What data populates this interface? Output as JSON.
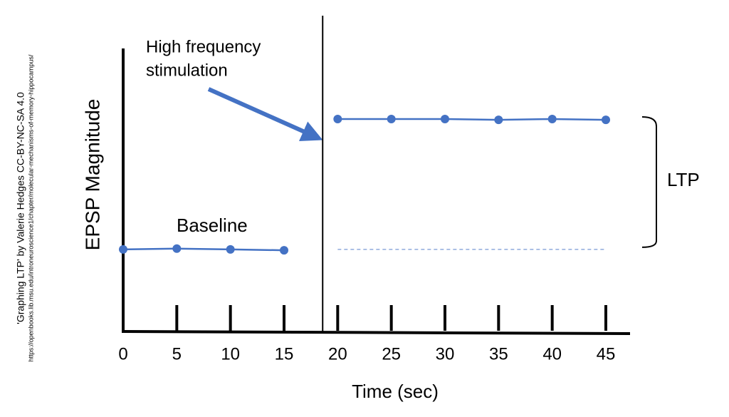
{
  "chart_data": {
    "type": "line",
    "x_label": "Time (sec)",
    "y_label": "EPSP Magnitude",
    "annotations": {
      "stimulation": [
        "High frequency",
        "stimulation"
      ],
      "baseline": "Baseline",
      "ltp": "LTP"
    },
    "credit": [
      "'Graphing LTP' by Valerie Hedges CC-BY-NC-SA 4.0",
      "https://openbooks.lib.msu.edu/introneuroscience1/chapter/molecular-mechanisms-of-memory-hippocampus/"
    ],
    "stimulation_time": 18.6,
    "series": [
      {
        "color": "#4472c4",
        "x": [
          0,
          5,
          10,
          15
        ],
        "values": [
          1.0,
          1.01,
          1.0,
          0.99
        ]
      },
      {
        "color": "#4472c4",
        "x": [
          20,
          25,
          30,
          35,
          40,
          45
        ],
        "values": [
          2.59,
          2.59,
          2.59,
          2.58,
          2.59,
          2.58
        ]
      }
    ],
    "xlim": [
      0,
      45
    ],
    "xticks": [
      0,
      5,
      10,
      15,
      20,
      25,
      30,
      35,
      40,
      45
    ],
    "ylim": [
      0,
      3.45
    ]
  }
}
